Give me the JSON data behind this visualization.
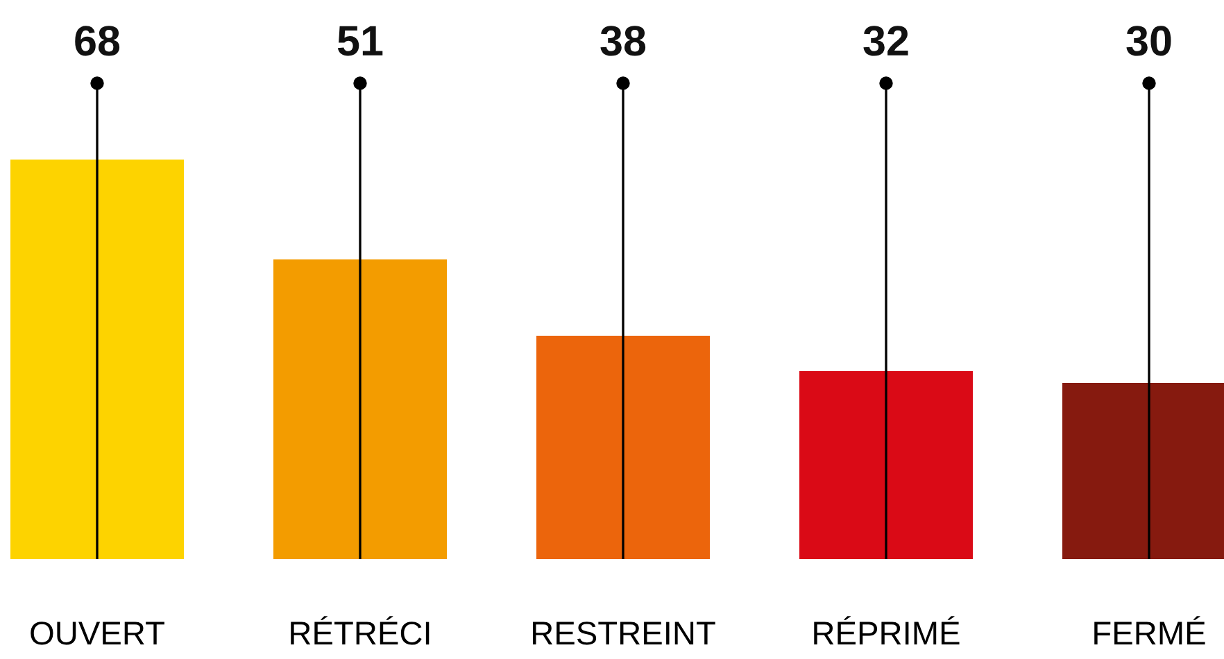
{
  "chart_data": {
    "type": "bar",
    "categories": [
      "OUVERT",
      "RÉTRÉCI",
      "RESTREINT",
      "RÉPRIMÉ",
      "FERMÉ"
    ],
    "values": [
      68,
      51,
      38,
      32,
      30
    ],
    "colors": [
      "#fdd300",
      "#f39c00",
      "#ec650c",
      "#da0a16",
      "#861a0f"
    ],
    "data_labels": true,
    "grid": "x"
  }
}
